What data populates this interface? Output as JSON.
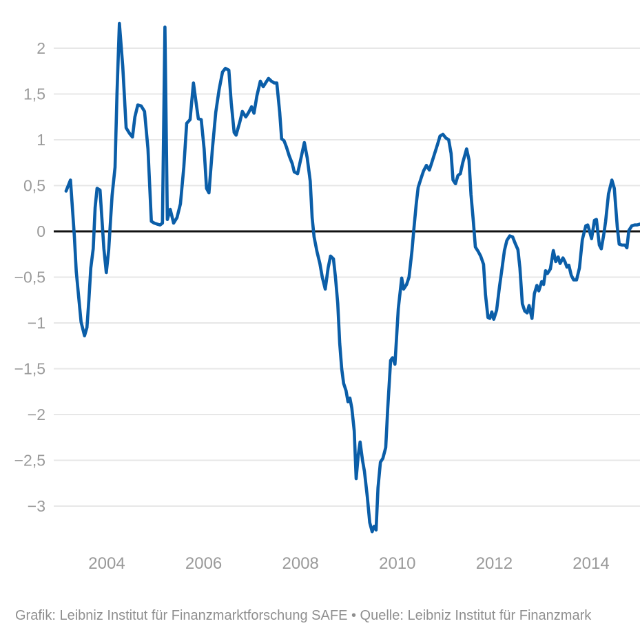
{
  "caption": {
    "text": "Grafik: Leibniz Institut für Finanzmarktforschung SAFE • Quelle: Leibniz Institut für Finanzmark"
  },
  "chart_data": {
    "type": "line",
    "title": "",
    "xlabel": "",
    "ylabel": "",
    "legend": "none",
    "grid": "horizontal",
    "xlim": [
      2003.05,
      2015.01
    ],
    "ylim": [
      -3.45,
      2.45
    ],
    "x_ticks": [
      {
        "v": 2004,
        "label": "2004"
      },
      {
        "v": 2006,
        "label": "2006"
      },
      {
        "v": 2008,
        "label": "2008"
      },
      {
        "v": 2010,
        "label": "2010"
      },
      {
        "v": 2012,
        "label": "2012"
      },
      {
        "v": 2014,
        "label": "2014"
      }
    ],
    "y_ticks": [
      {
        "v": 2,
        "label": "2"
      },
      {
        "v": 1.5,
        "label": "1,5"
      },
      {
        "v": 1,
        "label": "1"
      },
      {
        "v": 0.5,
        "label": "0,5"
      },
      {
        "v": 0,
        "label": "0"
      },
      {
        "v": -0.5,
        "label": "−0,5"
      },
      {
        "v": -1,
        "label": "−1"
      },
      {
        "v": -1.5,
        "label": "−1,5"
      },
      {
        "v": -2,
        "label": "−2"
      },
      {
        "v": -2.5,
        "label": "−2,5"
      },
      {
        "v": -3,
        "label": "−3"
      }
    ],
    "colors": {
      "line": "#0B5EA8",
      "grid": "#e7e7e7",
      "zero_line": "#111111",
      "axis_label": "#9a9a9a"
    },
    "series": [
      {
        "name": "indicator",
        "points": [
          [
            2003.16,
            0.44
          ],
          [
            2003.25,
            0.56
          ],
          [
            2003.33,
            -0.05
          ],
          [
            2003.37,
            -0.44
          ],
          [
            2003.43,
            -0.77
          ],
          [
            2003.47,
            -0.99
          ],
          [
            2003.54,
            -1.14
          ],
          [
            2003.59,
            -1.05
          ],
          [
            2003.63,
            -0.75
          ],
          [
            2003.67,
            -0.4
          ],
          [
            2003.72,
            -0.19
          ],
          [
            2003.76,
            0.26
          ],
          [
            2003.8,
            0.47
          ],
          [
            2003.86,
            0.45
          ],
          [
            2003.9,
            0.13
          ],
          [
            2003.94,
            -0.19
          ],
          [
            2003.99,
            -0.45
          ],
          [
            2004.04,
            -0.2
          ],
          [
            2004.11,
            0.39
          ],
          [
            2004.17,
            0.7
          ],
          [
            2004.21,
            1.5
          ],
          [
            2004.26,
            2.27
          ],
          [
            2004.33,
            1.8
          ],
          [
            2004.4,
            1.13
          ],
          [
            2004.47,
            1.07
          ],
          [
            2004.53,
            1.03
          ],
          [
            2004.58,
            1.25
          ],
          [
            2004.64,
            1.38
          ],
          [
            2004.71,
            1.37
          ],
          [
            2004.78,
            1.31
          ],
          [
            2004.85,
            0.9
          ],
          [
            2004.92,
            0.11
          ],
          [
            2004.98,
            0.09
          ],
          [
            2005.04,
            0.08
          ],
          [
            2005.1,
            0.07
          ],
          [
            2005.15,
            0.09
          ],
          [
            2005.2,
            2.23
          ],
          [
            2005.25,
            0.13
          ],
          [
            2005.31,
            0.24
          ],
          [
            2005.38,
            0.09
          ],
          [
            2005.45,
            0.15
          ],
          [
            2005.52,
            0.3
          ],
          [
            2005.59,
            0.7
          ],
          [
            2005.65,
            1.18
          ],
          [
            2005.72,
            1.22
          ],
          [
            2005.79,
            1.62
          ],
          [
            2005.85,
            1.38
          ],
          [
            2005.89,
            1.23
          ],
          [
            2005.95,
            1.22
          ],
          [
            2006.01,
            0.9
          ],
          [
            2006.06,
            0.47
          ],
          [
            2006.11,
            0.42
          ],
          [
            2006.18,
            0.9
          ],
          [
            2006.25,
            1.3
          ],
          [
            2006.32,
            1.55
          ],
          [
            2006.39,
            1.74
          ],
          [
            2006.45,
            1.78
          ],
          [
            2006.52,
            1.76
          ],
          [
            2006.57,
            1.4
          ],
          [
            2006.63,
            1.08
          ],
          [
            2006.67,
            1.05
          ],
          [
            2006.75,
            1.2
          ],
          [
            2006.8,
            1.31
          ],
          [
            2006.87,
            1.25
          ],
          [
            2006.93,
            1.3
          ],
          [
            2006.99,
            1.36
          ],
          [
            2007.04,
            1.29
          ],
          [
            2007.1,
            1.48
          ],
          [
            2007.17,
            1.64
          ],
          [
            2007.23,
            1.58
          ],
          [
            2007.29,
            1.63
          ],
          [
            2007.34,
            1.67
          ],
          [
            2007.4,
            1.64
          ],
          [
            2007.46,
            1.62
          ],
          [
            2007.51,
            1.62
          ],
          [
            2007.57,
            1.3
          ],
          [
            2007.61,
            1.01
          ],
          [
            2007.66,
            0.99
          ],
          [
            2007.71,
            0.92
          ],
          [
            2007.77,
            0.82
          ],
          [
            2007.83,
            0.74
          ],
          [
            2007.87,
            0.65
          ],
          [
            2007.94,
            0.63
          ],
          [
            2008.01,
            0.8
          ],
          [
            2008.08,
            0.97
          ],
          [
            2008.14,
            0.8
          ],
          [
            2008.2,
            0.55
          ],
          [
            2008.24,
            0.15
          ],
          [
            2008.28,
            -0.06
          ],
          [
            2008.34,
            -0.22
          ],
          [
            2008.4,
            -0.35
          ],
          [
            2008.45,
            -0.5
          ],
          [
            2008.51,
            -0.63
          ],
          [
            2008.57,
            -0.4
          ],
          [
            2008.62,
            -0.27
          ],
          [
            2008.68,
            -0.3
          ],
          [
            2008.72,
            -0.49
          ],
          [
            2008.77,
            -0.79
          ],
          [
            2008.81,
            -1.22
          ],
          [
            2008.85,
            -1.5
          ],
          [
            2008.89,
            -1.66
          ],
          [
            2008.94,
            -1.74
          ],
          [
            2008.98,
            -1.86
          ],
          [
            2009.02,
            -1.82
          ],
          [
            2009.06,
            -1.93
          ],
          [
            2009.11,
            -2.18
          ],
          [
            2009.15,
            -2.7
          ],
          [
            2009.19,
            -2.45
          ],
          [
            2009.23,
            -2.3
          ],
          [
            2009.28,
            -2.5
          ],
          [
            2009.32,
            -2.62
          ],
          [
            2009.38,
            -2.9
          ],
          [
            2009.43,
            -3.18
          ],
          [
            2009.48,
            -3.28
          ],
          [
            2009.52,
            -3.22
          ],
          [
            2009.56,
            -3.26
          ],
          [
            2009.6,
            -2.8
          ],
          [
            2009.65,
            -2.52
          ],
          [
            2009.7,
            -2.48
          ],
          [
            2009.76,
            -2.36
          ],
          [
            2009.8,
            -1.95
          ],
          [
            2009.86,
            -1.41
          ],
          [
            2009.9,
            -1.38
          ],
          [
            2009.95,
            -1.45
          ],
          [
            2010.02,
            -0.84
          ],
          [
            2010.09,
            -0.51
          ],
          [
            2010.13,
            -0.63
          ],
          [
            2010.19,
            -0.58
          ],
          [
            2010.24,
            -0.5
          ],
          [
            2010.3,
            -0.22
          ],
          [
            2010.34,
            0.02
          ],
          [
            2010.39,
            0.3
          ],
          [
            2010.43,
            0.48
          ],
          [
            2010.49,
            0.58
          ],
          [
            2010.54,
            0.66
          ],
          [
            2010.6,
            0.72
          ],
          [
            2010.66,
            0.67
          ],
          [
            2010.71,
            0.75
          ],
          [
            2010.77,
            0.85
          ],
          [
            2010.83,
            0.95
          ],
          [
            2010.88,
            1.04
          ],
          [
            2010.94,
            1.06
          ],
          [
            2011.0,
            1.02
          ],
          [
            2011.06,
            1.0
          ],
          [
            2011.11,
            0.85
          ],
          [
            2011.15,
            0.56
          ],
          [
            2011.2,
            0.52
          ],
          [
            2011.25,
            0.61
          ],
          [
            2011.3,
            0.63
          ],
          [
            2011.35,
            0.75
          ],
          [
            2011.43,
            0.9
          ],
          [
            2011.48,
            0.78
          ],
          [
            2011.52,
            0.4
          ],
          [
            2011.57,
            0.1
          ],
          [
            2011.61,
            -0.17
          ],
          [
            2011.67,
            -0.22
          ],
          [
            2011.72,
            -0.27
          ],
          [
            2011.78,
            -0.36
          ],
          [
            2011.82,
            -0.69
          ],
          [
            2011.87,
            -0.94
          ],
          [
            2011.91,
            -0.95
          ],
          [
            2011.95,
            -0.88
          ],
          [
            2011.99,
            -0.96
          ],
          [
            2012.05,
            -0.86
          ],
          [
            2012.11,
            -0.6
          ],
          [
            2012.15,
            -0.45
          ],
          [
            2012.21,
            -0.21
          ],
          [
            2012.26,
            -0.1
          ],
          [
            2012.32,
            -0.05
          ],
          [
            2012.38,
            -0.06
          ],
          [
            2012.44,
            -0.14
          ],
          [
            2012.49,
            -0.2
          ],
          [
            2012.53,
            -0.4
          ],
          [
            2012.58,
            -0.79
          ],
          [
            2012.63,
            -0.87
          ],
          [
            2012.68,
            -0.89
          ],
          [
            2012.72,
            -0.81
          ],
          [
            2012.78,
            -0.95
          ],
          [
            2012.83,
            -0.68
          ],
          [
            2012.88,
            -0.59
          ],
          [
            2012.92,
            -0.65
          ],
          [
            2012.98,
            -0.55
          ],
          [
            2013.02,
            -0.58
          ],
          [
            2013.06,
            -0.43
          ],
          [
            2013.1,
            -0.46
          ],
          [
            2013.16,
            -0.41
          ],
          [
            2013.22,
            -0.21
          ],
          [
            2013.27,
            -0.33
          ],
          [
            2013.32,
            -0.28
          ],
          [
            2013.36,
            -0.35
          ],
          [
            2013.42,
            -0.29
          ],
          [
            2013.46,
            -0.33
          ],
          [
            2013.5,
            -0.39
          ],
          [
            2013.54,
            -0.37
          ],
          [
            2013.59,
            -0.48
          ],
          [
            2013.64,
            -0.53
          ],
          [
            2013.7,
            -0.53
          ],
          [
            2013.76,
            -0.4
          ],
          [
            2013.82,
            -0.09
          ],
          [
            2013.89,
            0.06
          ],
          [
            2013.93,
            0.07
          ],
          [
            2013.97,
            0.0
          ],
          [
            2014.01,
            -0.08
          ],
          [
            2014.07,
            0.12
          ],
          [
            2014.11,
            0.13
          ],
          [
            2014.17,
            -0.15
          ],
          [
            2014.21,
            -0.19
          ],
          [
            2014.26,
            -0.04
          ],
          [
            2014.3,
            0.11
          ],
          [
            2014.36,
            0.41
          ],
          [
            2014.43,
            0.56
          ],
          [
            2014.48,
            0.47
          ],
          [
            2014.54,
            0.05
          ],
          [
            2014.58,
            -0.14
          ],
          [
            2014.64,
            -0.15
          ],
          [
            2014.7,
            -0.15
          ],
          [
            2014.74,
            -0.18
          ],
          [
            2014.78,
            0.01
          ],
          [
            2014.84,
            0.06
          ],
          [
            2014.9,
            0.07
          ],
          [
            2014.95,
            0.07
          ],
          [
            2015.01,
            0.08
          ]
        ]
      }
    ]
  }
}
